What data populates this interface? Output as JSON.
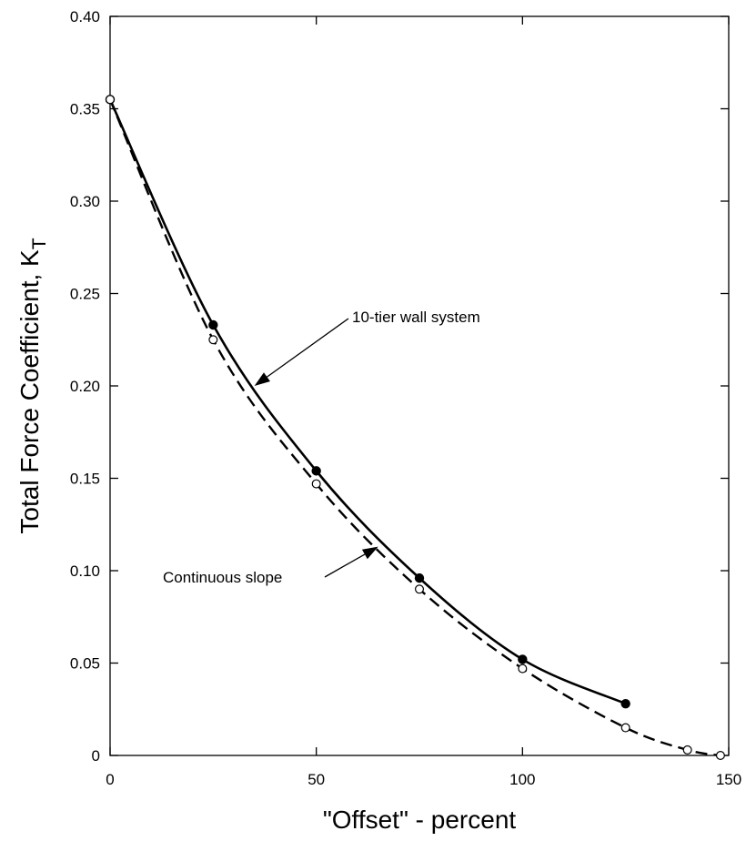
{
  "chart_data": {
    "type": "line",
    "xlabel": "\"Offset\" - percent",
    "ylabel": "Total Force Coefficient, K",
    "ylabel_subscript": "T",
    "xlim": [
      0,
      150
    ],
    "ylim": [
      0,
      0.4
    ],
    "xticks": [
      0,
      50,
      100,
      150
    ],
    "xtick_labels": [
      "0",
      "50",
      "100",
      "150"
    ],
    "yticks": [
      0,
      0.05,
      0.1,
      0.15,
      0.2,
      0.25,
      0.3,
      0.35,
      0.4
    ],
    "ytick_labels": [
      "0",
      "0.05",
      "0.10",
      "0.15",
      "0.20",
      "0.25",
      "0.30",
      "0.35",
      "0.40"
    ],
    "grid": false,
    "series": [
      {
        "name": "10-tier wall system",
        "line_style": "solid",
        "marker": "filled-circle",
        "x": [
          0,
          25,
          50,
          75,
          100,
          125
        ],
        "y": [
          0.355,
          0.233,
          0.154,
          0.096,
          0.052,
          0.028
        ]
      },
      {
        "name": "Continuous slope",
        "line_style": "dashed",
        "marker": "open-circle",
        "x": [
          0,
          25,
          50,
          75,
          100,
          125,
          140,
          148
        ],
        "y": [
          0.355,
          0.225,
          0.147,
          0.09,
          0.047,
          0.015,
          0.003,
          0.0
        ]
      }
    ],
    "annotations": [
      {
        "text": "10-tier wall system",
        "series": 0,
        "arrow_to": {
          "x": 35,
          "y": 0.2
        }
      },
      {
        "text": "Continuous slope",
        "series": 1,
        "arrow_to": {
          "x": 65,
          "y": 0.113
        }
      }
    ],
    "colors": {
      "axis": "#000000",
      "line": "#000000",
      "marker_fill_open": "#ffffff"
    }
  }
}
